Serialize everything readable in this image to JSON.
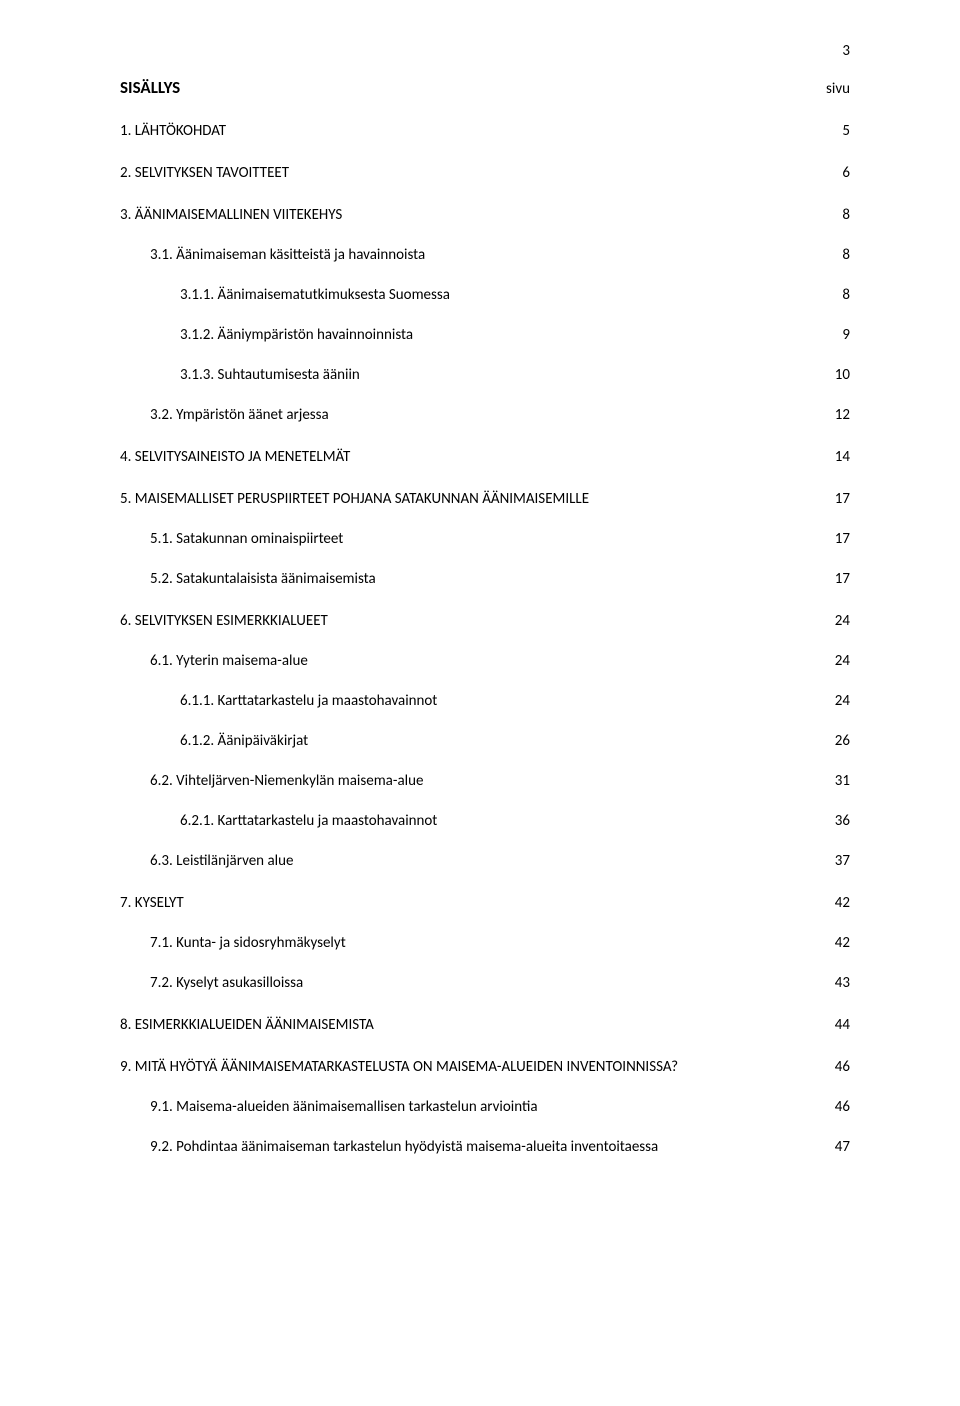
{
  "page_number": "3",
  "heading": {
    "title": "SISÄLLYS",
    "page_col": "sivu"
  },
  "entries": [
    {
      "label": "1. LÄHTÖKOHDAT",
      "page": "5",
      "indent": 0,
      "gap": "lg"
    },
    {
      "label": "2. SELVITYKSEN TAVOITTEET",
      "page": "6",
      "indent": 0,
      "gap": "lg"
    },
    {
      "label": "3. ÄÄNIMAISEMALLINEN VIITEKEHYS",
      "page": "8",
      "indent": 0,
      "gap": "lg"
    },
    {
      "label": "3.1. Äänimaiseman käsitteistä ja havainnoista",
      "page": "8",
      "indent": 1,
      "gap": "md"
    },
    {
      "label": "3.1.1. Äänimaisematutkimuksesta Suomessa",
      "page": "8",
      "indent": 2,
      "gap": "md"
    },
    {
      "label": "3.1.2. Ääniympäristön havainnoinnista",
      "page": "9",
      "indent": 2,
      "gap": "md"
    },
    {
      "label": "3.1.3. Suhtautumisesta ääniin",
      "page": "10",
      "indent": 2,
      "gap": "md"
    },
    {
      "label": "3.2. Ympäristön äänet arjessa",
      "page": "12",
      "indent": 1,
      "gap": "md"
    },
    {
      "label": "4. SELVITYSAINEISTO JA MENETELMÄT",
      "page": "14",
      "indent": 0,
      "gap": "lg"
    },
    {
      "label": "5. MAISEMALLISET PERUSPIIRTEET POHJANA SATAKUNNAN ÄÄNIMAISEMILLE",
      "page": "17",
      "indent": 0,
      "gap": "lg"
    },
    {
      "label": "5.1. Satakunnan ominaispiirteet",
      "page": "17",
      "indent": 1,
      "gap": "md"
    },
    {
      "label": "5.2. Satakuntalaisista äänimaisemista",
      "page": "17",
      "indent": 1,
      "gap": "md"
    },
    {
      "label": "6. SELVITYKSEN ESIMERKKIALUEET",
      "page": "24",
      "indent": 0,
      "gap": "lg"
    },
    {
      "label": "6.1. Yyterin maisema-alue",
      "page": "24",
      "indent": 1,
      "gap": "md"
    },
    {
      "label": "6.1.1. Karttatarkastelu ja maastohavainnot",
      "page": "24",
      "indent": 2,
      "gap": "md"
    },
    {
      "label": "6.1.2. Äänipäiväkirjat",
      "page": "26",
      "indent": 2,
      "gap": "md"
    },
    {
      "label": "6.2. Vihteljärven-Niemenkylän maisema-alue",
      "page": "31",
      "indent": 1,
      "gap": "md"
    },
    {
      "label": "6.2.1. Karttatarkastelu ja maastohavainnot",
      "page": "36",
      "indent": 2,
      "gap": "md"
    },
    {
      "label": "6.3. Leistilänjärven alue",
      "page": "37",
      "indent": 1,
      "gap": "md"
    },
    {
      "label": "7. KYSELYT",
      "page": "42",
      "indent": 0,
      "gap": "lg"
    },
    {
      "label": "7.1. Kunta- ja sidosryhmäkyselyt",
      "page": "42",
      "indent": 1,
      "gap": "md"
    },
    {
      "label": "7.2. Kyselyt asukasilloissa",
      "page": "43",
      "indent": 1,
      "gap": "md"
    },
    {
      "label": "8. ESIMERKKIALUEIDEN ÄÄNIMAISEMISTA",
      "page": "44",
      "indent": 0,
      "gap": "lg"
    },
    {
      "label": "9. MITÄ HYÖTYÄ ÄÄNIMAISEMATARKASTELUSTA ON MAISEMA-ALUEIDEN INVENTOINNISSA?",
      "page": "46",
      "indent": 0,
      "gap": "lg"
    },
    {
      "label": "9.1. Maisema-alueiden äänimaisemallisen tarkastelun arviointia",
      "page": "46",
      "indent": 1,
      "gap": "md"
    },
    {
      "label": "9.2. Pohdintaa äänimaiseman tarkastelun hyödyistä maisema-alueita inventoitaessa",
      "page": "47",
      "indent": 1,
      "gap": "md"
    }
  ]
}
